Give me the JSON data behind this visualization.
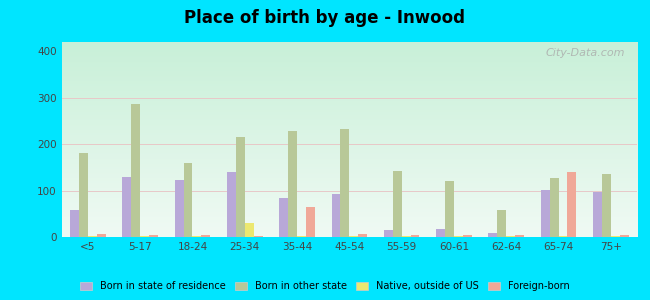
{
  "title": "Place of birth by age - Inwood",
  "categories": [
    "<5",
    "5-17",
    "18-24",
    "25-34",
    "35-44",
    "45-54",
    "55-59",
    "60-61",
    "62-64",
    "65-74",
    "75+"
  ],
  "series": {
    "Born in state of residence": [
      58,
      130,
      122,
      140,
      85,
      93,
      15,
      17,
      8,
      102,
      98
    ],
    "Born in other state": [
      180,
      287,
      160,
      215,
      228,
      233,
      143,
      121,
      58,
      127,
      135
    ],
    "Native, outside of US": [
      3,
      3,
      3,
      30,
      3,
      3,
      3,
      3,
      3,
      3,
      3
    ],
    "Foreign-born": [
      7,
      5,
      5,
      3,
      65,
      7,
      5,
      5,
      5,
      140,
      5
    ]
  },
  "colors": {
    "Born in state of residence": "#b8a8d8",
    "Born in other state": "#b8c898",
    "Native, outside of US": "#ece870",
    "Foreign-born": "#f0a898"
  },
  "ylim": [
    0,
    420
  ],
  "yticks": [
    0,
    100,
    200,
    300,
    400
  ],
  "bg_bottom": "#c8f0d8",
  "bg_top": "#f0faf4",
  "outer_background": "#00e5ff",
  "watermark": "City-Data.com",
  "grid_color": "#ddeeee"
}
